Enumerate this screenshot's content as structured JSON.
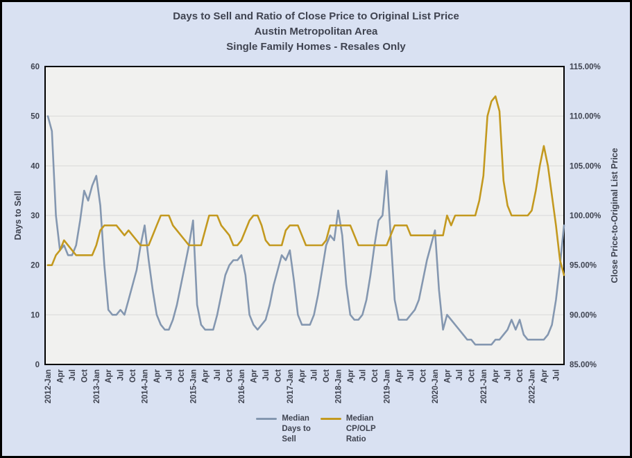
{
  "title": {
    "line1": "Days to Sell and Ratio of Close Price to Original List Price",
    "line2": "Austin Metropolitan Area",
    "line3": "Single Family Homes - Resales Only"
  },
  "left_axis": {
    "title": "Days to Sell",
    "ticks": [
      0,
      10,
      20,
      30,
      40,
      50,
      60
    ]
  },
  "right_axis": {
    "title": "Close Price-to-Original List Price",
    "ticks": [
      85,
      90,
      95,
      100,
      105,
      110,
      115
    ],
    "tick_labels": [
      "85.00%",
      "90.00%",
      "95.00%",
      "100.00%",
      "105.00%",
      "110.00%",
      "115.00%"
    ]
  },
  "legend": {
    "items": [
      {
        "name": "median-days-to-sell",
        "lines": [
          "Median",
          "Days to",
          "Sell"
        ],
        "color": "#8497B0"
      },
      {
        "name": "median-cp-olp-ratio",
        "lines": [
          "Median",
          "CP/OLP",
          "Ratio"
        ],
        "color": "#C3991F"
      }
    ]
  },
  "colors": {
    "background": "#d9e1f2",
    "plot_bg": "#f1f1ef",
    "grid": "#d8d8d8",
    "border": "#000000",
    "text": "#3f4350",
    "days_line": "#8497B0",
    "ratio_line": "#C3991F"
  },
  "chart_data": {
    "type": "line",
    "title": "Days to Sell and Ratio of Close Price to Original List Price - Austin Metropolitan Area - Single Family Homes - Resales Only",
    "x_start": "2012-Jan",
    "x_end": "2022-Sep",
    "x_frequency": "monthly",
    "x_tick_step_months": 3,
    "x_tick_labels": [
      "2012-Jan",
      "Apr",
      "Jul",
      "Oct",
      "2013-Jan",
      "Apr",
      "Jul",
      "Oct",
      "2014-Jan",
      "Apr",
      "Jul",
      "Oct",
      "2015-Jan",
      "Apr",
      "Jul",
      "Oct",
      "2016-Jan",
      "Apr",
      "Jul",
      "Oct",
      "2017-Jan",
      "Apr",
      "Jul",
      "Oct",
      "2018-Jan",
      "Apr",
      "Jul",
      "Oct",
      "2019-Jan",
      "Apr",
      "Jul",
      "Oct",
      "2020-Jan",
      "Apr",
      "Jul",
      "Oct",
      "2021-Jan",
      "Apr",
      "Jul",
      "Oct",
      "2022-Jan",
      "Apr",
      "Jul"
    ],
    "left_ylim": [
      0,
      60
    ],
    "right_ylim": [
      85,
      115
    ],
    "grid": "horizontal",
    "legend_position": "bottom",
    "series": [
      {
        "name": "Median Days to Sell",
        "data_name": "median-days-to-sell-line",
        "axis": "left",
        "color": "#8497B0",
        "units": "days",
        "values": [
          50,
          47,
          30,
          23,
          24,
          22,
          22,
          24,
          29,
          35,
          33,
          36,
          38,
          32,
          20,
          11,
          10,
          10,
          11,
          10,
          13,
          16,
          19,
          24,
          28,
          21,
          15,
          10,
          8,
          7,
          7,
          9,
          12,
          16,
          20,
          24,
          29,
          12,
          8,
          7,
          7,
          7,
          10,
          14,
          18,
          20,
          21,
          21,
          22,
          18,
          10,
          8,
          7,
          8,
          9,
          12,
          16,
          19,
          22,
          21,
          23,
          17,
          10,
          8,
          8,
          8,
          10,
          14,
          19,
          24,
          26,
          25,
          31,
          26,
          16,
          10,
          9,
          9,
          10,
          13,
          18,
          24,
          29,
          30,
          39,
          26,
          13,
          9,
          9,
          9,
          10,
          11,
          13,
          17,
          21,
          24,
          27,
          15,
          7,
          10,
          9,
          8,
          7,
          6,
          5,
          5,
          4,
          4,
          4,
          4,
          4,
          5,
          5,
          6,
          7,
          9,
          7,
          9,
          6,
          5,
          5,
          5,
          5,
          5,
          6,
          8,
          13,
          20,
          28
        ]
      },
      {
        "name": "Median CP/OLP Ratio",
        "data_name": "median-cp-olp-ratio-line",
        "axis": "right",
        "color": "#C3991F",
        "units": "percent",
        "values": [
          95,
          95,
          96,
          96.5,
          97.5,
          97,
          96.5,
          96,
          96,
          96,
          96,
          96,
          97,
          98.5,
          99,
          99,
          99,
          99,
          98.5,
          98,
          98.5,
          98,
          97.5,
          97,
          97,
          97,
          98,
          99,
          100,
          100,
          100,
          99,
          98.5,
          98,
          97.5,
          97,
          97,
          97,
          97,
          98.5,
          100,
          100,
          100,
          99,
          98.5,
          98,
          97,
          97,
          97.5,
          98.5,
          99.5,
          100,
          100,
          99,
          97.5,
          97,
          97,
          97,
          97,
          98.5,
          99,
          99,
          99,
          98,
          97,
          97,
          97,
          97,
          97,
          97.5,
          99,
          99,
          99,
          99,
          99,
          99,
          98,
          97,
          97,
          97,
          97,
          97,
          97,
          97,
          97,
          98,
          99,
          99,
          99,
          99,
          98,
          98,
          98,
          98,
          98,
          98,
          98,
          98,
          98,
          100,
          99,
          100,
          100,
          100,
          100,
          100,
          100,
          101.5,
          104,
          110,
          111.5,
          112,
          110.5,
          103.5,
          101,
          100,
          100,
          100,
          100,
          100,
          100.5,
          102.5,
          105,
          107,
          105,
          102,
          99,
          95.5,
          94
        ]
      }
    ]
  }
}
